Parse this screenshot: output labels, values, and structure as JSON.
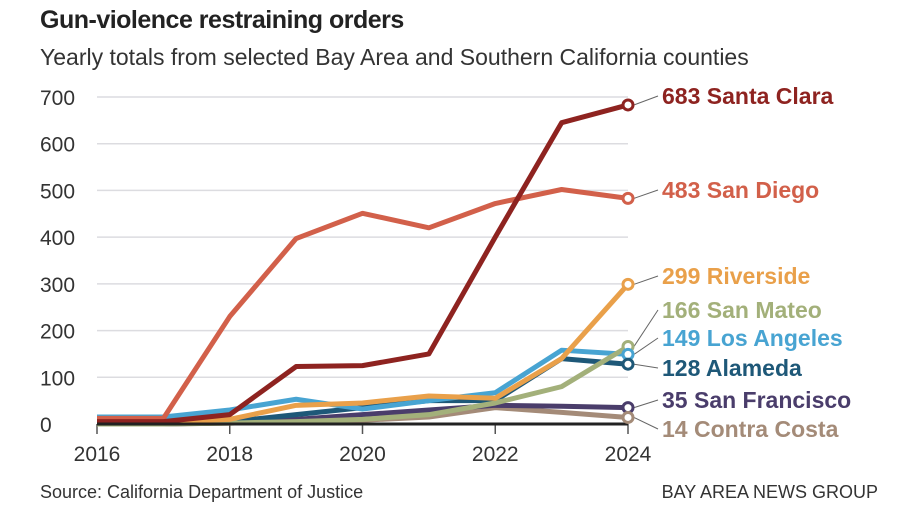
{
  "chart_data": {
    "type": "line",
    "title": "Gun-violence restraining orders",
    "subtitle": "Yearly totals from selected Bay Area and Southern California counties",
    "x": [
      2016,
      2017,
      2018,
      2019,
      2020,
      2021,
      2022,
      2023,
      2024
    ],
    "x_ticks": [
      "2016",
      "2018",
      "2020",
      "2022",
      "2024"
    ],
    "y_ticks": [
      "0",
      "100",
      "200",
      "300",
      "400",
      "500",
      "600",
      "700"
    ],
    "ylim": [
      0,
      700
    ],
    "grid": true,
    "legend": "direct labels at line ends (right)",
    "series": [
      {
        "name": "Santa Clara",
        "label": "683 Santa Clara",
        "color": "#8e2320",
        "values": [
          5,
          5,
          20,
          123,
          125,
          150,
          400,
          645,
          683
        ]
      },
      {
        "name": "San Diego",
        "label": "483 San Diego",
        "color": "#d2604a",
        "values": [
          12,
          12,
          230,
          397,
          451,
          420,
          472,
          502,
          483
        ]
      },
      {
        "name": "Riverside",
        "label": "299 Riverside",
        "color": "#e9a04a",
        "values": [
          5,
          5,
          10,
          40,
          45,
          60,
          55,
          140,
          299
        ]
      },
      {
        "name": "San Mateo",
        "label": "166 San Mateo",
        "color": "#a3b07a",
        "values": [
          0,
          0,
          2,
          5,
          10,
          20,
          45,
          80,
          166
        ]
      },
      {
        "name": "Los Angeles",
        "label": "149 Los Angeles",
        "color": "#48a4d2",
        "values": [
          15,
          15,
          30,
          53,
          32,
          50,
          67,
          158,
          149
        ]
      },
      {
        "name": "Alameda",
        "label": "128 Alameda",
        "color": "#1e5878",
        "values": [
          5,
          5,
          5,
          20,
          35,
          50,
          50,
          140,
          128
        ]
      },
      {
        "name": "San Francisco",
        "label": "35 San Francisco",
        "color": "#4a3d6b",
        "values": [
          0,
          0,
          3,
          10,
          20,
          30,
          40,
          38,
          35
        ]
      },
      {
        "name": "Contra Costa",
        "label": "14 Contra Costa",
        "color": "#a48b78",
        "values": [
          0,
          0,
          2,
          5,
          8,
          15,
          35,
          25,
          14
        ]
      }
    ]
  },
  "source": "Source: California Department of Justice",
  "credit": "BAY AREA NEWS GROUP"
}
